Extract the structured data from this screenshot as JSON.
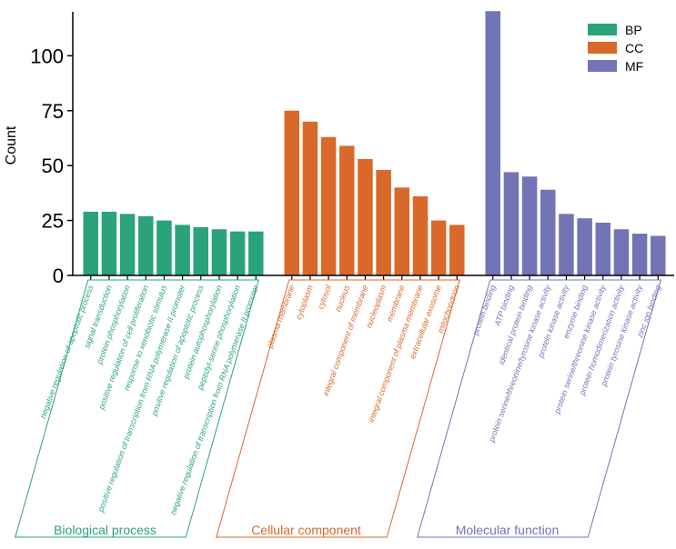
{
  "chart_data": {
    "type": "bar",
    "ylabel": "Count",
    "ylim": [
      0,
      120
    ],
    "yticks": [
      0,
      25,
      50,
      75,
      100
    ],
    "grid": false,
    "legend_position": "top-right",
    "groups": [
      {
        "key": "BP",
        "name": "Biological process",
        "color": "#2aa27b",
        "categories": [
          "negative regulation of apoptotic process",
          "signal transduction",
          "protein phosphorylation",
          "positive regulation of cell proliferation",
          "response to xenobiotic stimulus",
          "positive regulation of transcription from RNA polymerase II promoter",
          "positive regulation of apoptotic process",
          "protein autophosphorylation",
          "peptidyl-serine phosphorylation",
          "negative regulation of transcription from RNA polymerase II promoter"
        ],
        "values": [
          29,
          29,
          28,
          27,
          25,
          23,
          22,
          21,
          20,
          20
        ]
      },
      {
        "key": "CC",
        "name": "Cellular component",
        "color": "#d9692a",
        "categories": [
          "plasma membrane",
          "cytoplasm",
          "cytosol",
          "nucleus",
          "integral component of membrane",
          "nucleoplasm",
          "membrane",
          "integral component of plasma membrane",
          "extracellular exosome",
          "mitochondrion"
        ],
        "values": [
          75,
          70,
          63,
          59,
          53,
          48,
          40,
          36,
          25,
          23
        ]
      },
      {
        "key": "MF",
        "name": "Molecular function",
        "color": "#7274b6",
        "categories": [
          "protein binding",
          "ATP binding",
          "identical protein binding",
          "protein serine/threonine/tyrosine kinase activity",
          "protein kinase activity",
          "enzyme binding",
          "protein serine/threonine kinase activity",
          "protein homodimerization activity",
          "protein tyrosine kinase activity",
          "zinc ion binding"
        ],
        "values": [
          121,
          47,
          45,
          39,
          28,
          26,
          24,
          21,
          19,
          18
        ]
      }
    ]
  }
}
